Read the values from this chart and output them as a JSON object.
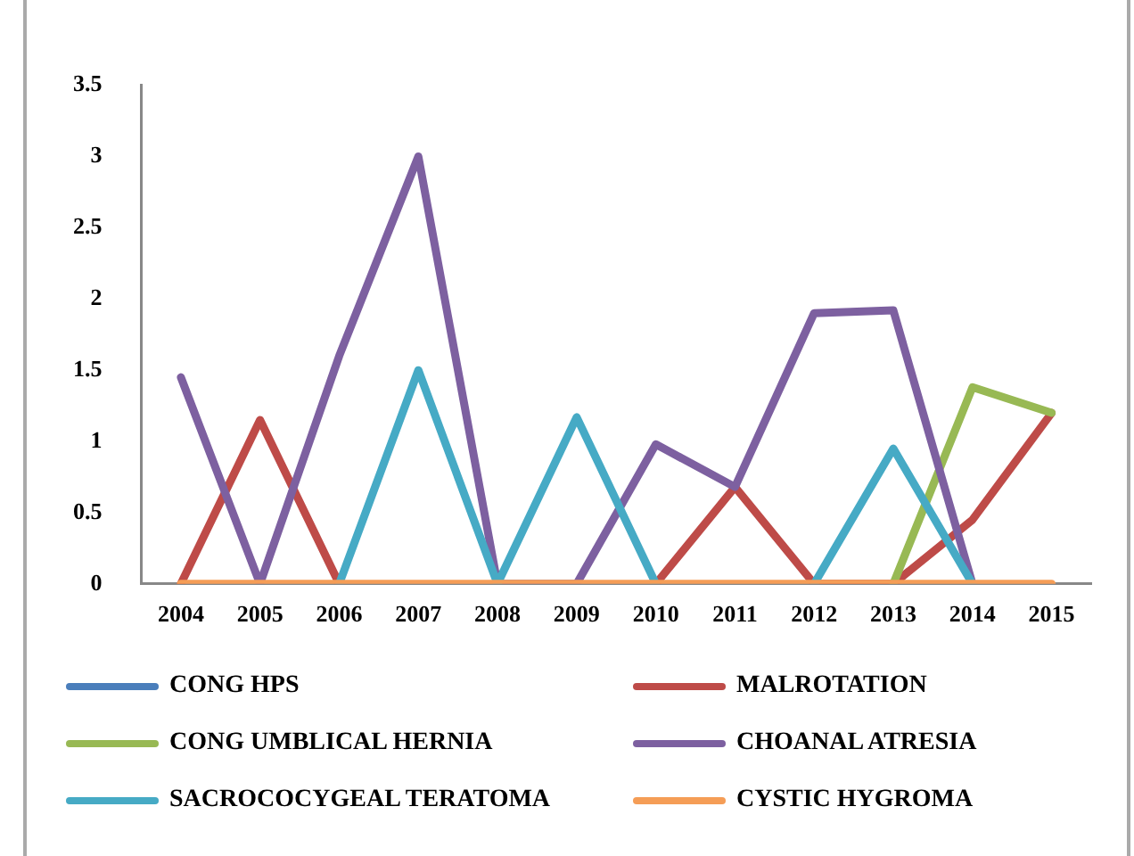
{
  "chart_data": {
    "type": "line",
    "categories": [
      "2004",
      "2005",
      "2006",
      "2007",
      "2008",
      "2009",
      "2010",
      "2011",
      "2012",
      "2013",
      "2014",
      "2015"
    ],
    "series": [
      {
        "name": "CONG HPS",
        "color": "#4a7ebb",
        "values": [
          null,
          null,
          null,
          null,
          null,
          null,
          null,
          null,
          null,
          null,
          null,
          null
        ]
      },
      {
        "name": "MALROTATION",
        "color": "#be4b48",
        "values": [
          0,
          1.15,
          0,
          null,
          null,
          null,
          0,
          0.68,
          0,
          0,
          0.45,
          1.2
        ]
      },
      {
        "name": "CONG UMBLICAL HERNIA",
        "color": "#98b954",
        "values": [
          null,
          null,
          null,
          null,
          null,
          null,
          null,
          null,
          null,
          0,
          1.38,
          1.2
        ]
      },
      {
        "name": "CHOANAL ATRESIA",
        "color": "#7d60a0",
        "values": [
          1.45,
          0,
          1.6,
          3.0,
          0,
          0,
          0.98,
          0.68,
          1.9,
          1.92,
          0,
          null
        ]
      },
      {
        "name": "SACROCOCYGEAL TERATOMA",
        "color": "#46aac5",
        "values": [
          null,
          null,
          0,
          1.5,
          0,
          1.17,
          0,
          null,
          0,
          0.95,
          0,
          null
        ]
      },
      {
        "name": "CYSTIC HYGROMA",
        "color": "#f59d56",
        "values": [
          0,
          0,
          0,
          0,
          0,
          0,
          0,
          0,
          0,
          0,
          0,
          0
        ]
      }
    ],
    "ylim": [
      0,
      3.5
    ],
    "yticks": [
      0,
      0.5,
      1,
      1.5,
      2,
      2.5,
      3,
      3.5
    ],
    "grid": false,
    "legend": "bottom",
    "marker": "none",
    "line_style": "solid"
  }
}
